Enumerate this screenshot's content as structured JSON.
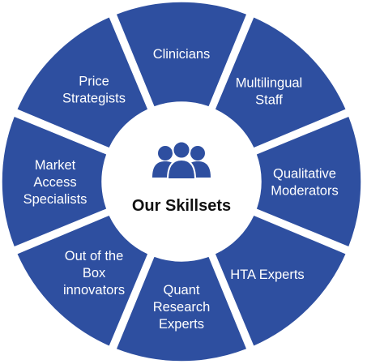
{
  "diagram": {
    "center": {
      "title": "Our Skillsets",
      "icon": "people-group-icon"
    },
    "segments": [
      {
        "label": "Clinicians",
        "lines": [
          "Clinicians"
        ]
      },
      {
        "label": "Multilingual Staff",
        "lines": [
          "Multilingual",
          "Staff"
        ]
      },
      {
        "label": "Qualitative Moderators",
        "lines": [
          "Qualitative",
          "Moderators"
        ]
      },
      {
        "label": "HTA Experts",
        "lines": [
          "HTA Experts"
        ]
      },
      {
        "label": "Quant Research Experts",
        "lines": [
          "Quant",
          "Research",
          "Experts"
        ]
      },
      {
        "label": "Out of the Box innovators",
        "lines": [
          "Out of the",
          "Box",
          "innovators"
        ]
      },
      {
        "label": "Market Access Specialists",
        "lines": [
          "Market",
          "Access",
          "Specialists"
        ]
      },
      {
        "label": "Price Strategists",
        "lines": [
          "Price",
          "Strategists"
        ]
      }
    ],
    "colors": {
      "segment_fill": "#2e4fa0",
      "segment_stroke": "#ffffff",
      "icon_fill": "#2e4fa0",
      "center_text": "#111111"
    }
  }
}
